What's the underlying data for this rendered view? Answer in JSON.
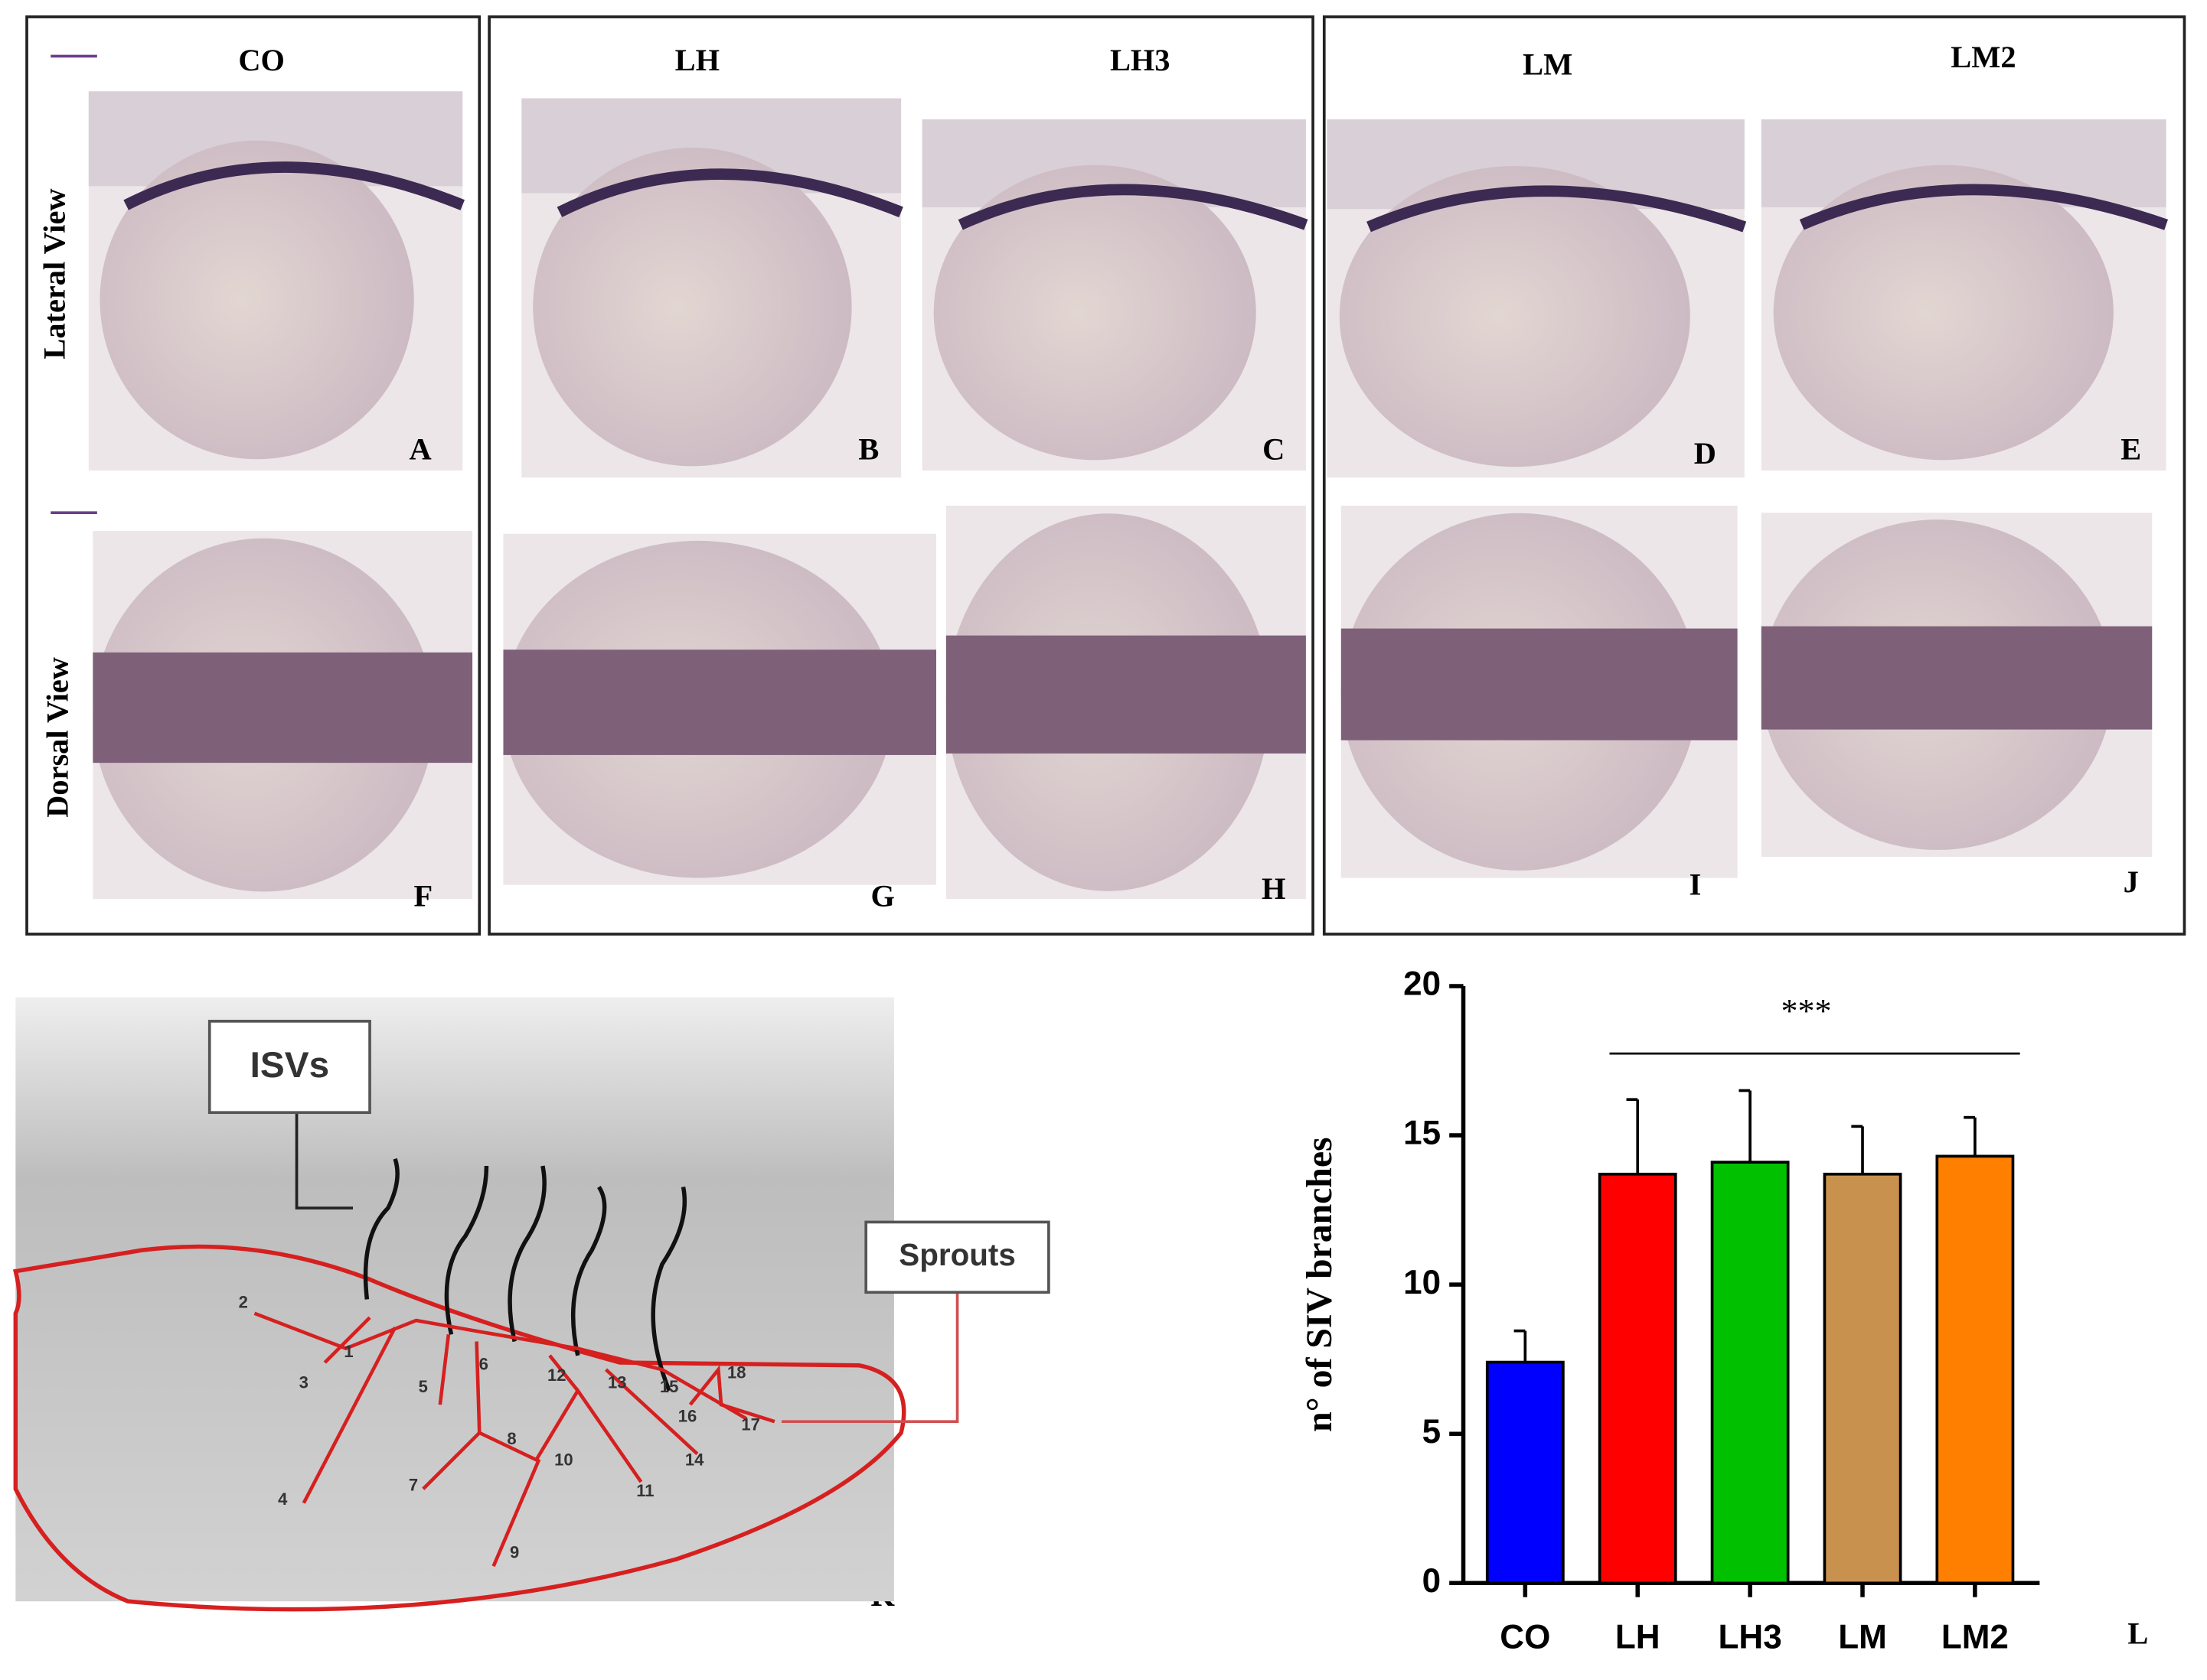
{
  "figure": {
    "column_labels": [
      "CO",
      "LH",
      "LH3",
      "LM",
      "LM2"
    ],
    "row_labels": [
      "Lateral View",
      "Dorsal View"
    ],
    "panel_letters": [
      "A",
      "B",
      "C",
      "D",
      "E",
      "F",
      "G",
      "H",
      "I",
      "J",
      "K",
      "L"
    ]
  },
  "diagram": {
    "callouts": [
      "ISVs",
      "Sprouts"
    ],
    "branch_numbers": [
      1,
      2,
      3,
      4,
      5,
      6,
      7,
      8,
      9,
      10,
      11,
      12,
      13,
      14,
      15,
      16,
      17,
      18
    ]
  },
  "chart_data": {
    "type": "bar",
    "ylabel": "n° of SIV branches",
    "categories": [
      "CO",
      "LH",
      "LH3",
      "LM",
      "LM2"
    ],
    "values": [
      7.4,
      13.7,
      14.1,
      13.7,
      14.3
    ],
    "errors": [
      1.05,
      2.5,
      2.4,
      1.6,
      1.3
    ],
    "colors": [
      "#0000ff",
      "#ff0000",
      "#00c000",
      "#c8924e",
      "#ff8000"
    ],
    "ylim": [
      0,
      20
    ],
    "yticks": [
      0,
      5,
      10,
      15,
      20
    ],
    "annotation": "***"
  }
}
